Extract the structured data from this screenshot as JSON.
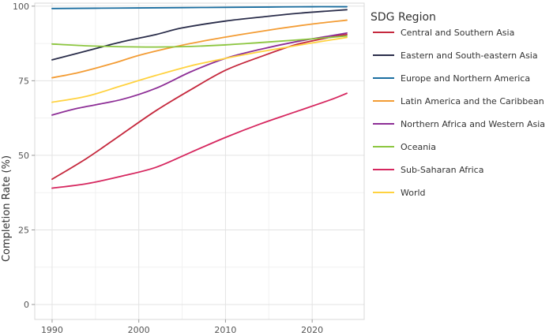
{
  "chart_data": {
    "type": "line",
    "title": "",
    "xlabel": "",
    "ylabel": "Completion Rate (%)",
    "xlim": [
      1988,
      2026
    ],
    "ylim": [
      -5,
      101
    ],
    "x_ticks": [
      1990,
      2000,
      2010,
      2020
    ],
    "y_ticks": [
      0,
      25,
      50,
      75,
      100
    ],
    "grid": true,
    "legend": {
      "title": "SDG Region",
      "placement": "right"
    },
    "series": [
      {
        "name": "Central and Southern Asia",
        "color": "#c5283d",
        "points": [
          [
            1990,
            42
          ],
          [
            1994,
            49
          ],
          [
            1998,
            57
          ],
          [
            2002,
            65
          ],
          [
            2006,
            72
          ],
          [
            2010,
            78.5
          ],
          [
            2014,
            83
          ],
          [
            2018,
            87
          ],
          [
            2022,
            89.5
          ],
          [
            2024,
            90.5
          ]
        ]
      },
      {
        "name": "Eastern and South-eastern Asia",
        "color": "#2a2d4a",
        "points": [
          [
            1990,
            82
          ],
          [
            1994,
            85
          ],
          [
            1998,
            88
          ],
          [
            2002,
            90.5
          ],
          [
            2005,
            92.7
          ],
          [
            2010,
            95
          ],
          [
            2014,
            96.3
          ],
          [
            2018,
            97.5
          ],
          [
            2022,
            98.4
          ],
          [
            2024,
            98.8
          ]
        ]
      },
      {
        "name": "Europe and Northern America",
        "color": "#1b6ea0",
        "points": [
          [
            1990,
            99.2
          ],
          [
            1995,
            99.3
          ],
          [
            2000,
            99.4
          ],
          [
            2005,
            99.5
          ],
          [
            2010,
            99.6
          ],
          [
            2015,
            99.7
          ],
          [
            2020,
            99.8
          ],
          [
            2024,
            99.8
          ]
        ]
      },
      {
        "name": "Latin America and the Caribbean",
        "color": "#f39c34",
        "points": [
          [
            1990,
            76
          ],
          [
            1993,
            77.7
          ],
          [
            1997,
            80.8
          ],
          [
            2000,
            83.5
          ],
          [
            2004,
            86.3
          ],
          [
            2008,
            88.6
          ],
          [
            2012,
            90.6
          ],
          [
            2016,
            92.4
          ],
          [
            2020,
            94
          ],
          [
            2024,
            95.3
          ]
        ]
      },
      {
        "name": "Northern Africa and Western Asia",
        "color": "#8d2e96",
        "points": [
          [
            1990,
            63.5
          ],
          [
            1993,
            65.8
          ],
          [
            1998,
            68.7
          ],
          [
            2002,
            72.5
          ],
          [
            2006,
            78
          ],
          [
            2010,
            82.5
          ],
          [
            2014,
            85.5
          ],
          [
            2018,
            88
          ],
          [
            2022,
            90
          ],
          [
            2024,
            91
          ]
        ]
      },
      {
        "name": "Oceania",
        "color": "#8cc63f",
        "points": [
          [
            1990,
            87.3
          ],
          [
            1994,
            86.7
          ],
          [
            1998,
            86.4
          ],
          [
            2002,
            86.3
          ],
          [
            2006,
            86.5
          ],
          [
            2010,
            87
          ],
          [
            2014,
            87.8
          ],
          [
            2018,
            88.6
          ],
          [
            2022,
            89.5
          ],
          [
            2024,
            90
          ]
        ]
      },
      {
        "name": "Sub-Saharan Africa",
        "color": "#d6275f",
        "points": [
          [
            1990,
            39
          ],
          [
            1994,
            40.5
          ],
          [
            1998,
            43
          ],
          [
            2002,
            46
          ],
          [
            2006,
            51
          ],
          [
            2010,
            56
          ],
          [
            2014,
            60.5
          ],
          [
            2018,
            64.5
          ],
          [
            2022,
            68.5
          ],
          [
            2024,
            70.8
          ]
        ]
      },
      {
        "name": "World",
        "color": "#ffd23f",
        "points": [
          [
            1990,
            67.8
          ],
          [
            1994,
            69.8
          ],
          [
            1998,
            73.3
          ],
          [
            2002,
            76.8
          ],
          [
            2006,
            80
          ],
          [
            2010,
            82.5
          ],
          [
            2014,
            84.7
          ],
          [
            2018,
            86.7
          ],
          [
            2022,
            88.6
          ],
          [
            2024,
            89.5
          ]
        ]
      }
    ]
  }
}
